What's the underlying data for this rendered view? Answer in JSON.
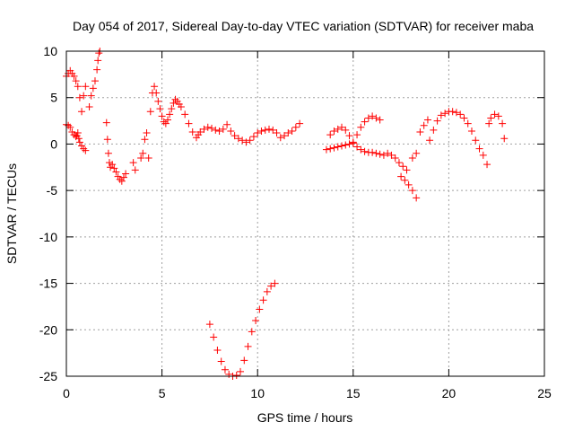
{
  "chart_data": {
    "type": "scatter",
    "title": "Day 054 of 2017, Sidereal Day-to-day VTEC variation (SDTVAR) for receiver maba",
    "xlabel": "GPS time / hours",
    "ylabel": "SDTVAR / TECUs",
    "xlim": [
      0,
      25
    ],
    "ylim": [
      -25,
      10
    ],
    "xticks": [
      0,
      5,
      10,
      15,
      20,
      25
    ],
    "xtick_labels": [
      "0",
      "5",
      "10",
      "15",
      "20",
      "25"
    ],
    "yticks": [
      -25,
      -20,
      -15,
      -10,
      -5,
      0,
      5,
      10
    ],
    "ytick_labels": [
      "-25",
      "-20",
      "-15",
      "-10",
      "-5",
      "0",
      "5",
      "10"
    ],
    "grid": true,
    "marker": "plus",
    "color": "#ff0000",
    "series": [
      {
        "x": [
          0.0,
          0.1,
          0.2,
          0.3,
          0.4,
          0.5,
          0.6,
          0.7,
          0.8,
          0.9,
          1.0,
          0.0,
          0.1,
          0.2,
          0.3,
          0.4,
          0.5,
          0.55,
          0.6,
          0.65,
          0.7,
          0.8,
          0.9,
          1.0,
          1.2,
          1.3,
          1.4,
          1.5,
          1.6,
          1.65,
          1.7,
          1.75,
          2.1,
          2.15,
          2.2,
          2.25,
          2.3,
          2.4,
          2.5,
          2.6,
          2.7,
          2.8,
          2.9,
          3.0,
          3.1,
          3.5,
          3.6,
          3.9,
          4.0,
          4.1,
          4.2,
          4.3,
          4.4,
          4.5,
          4.6,
          4.7,
          4.8,
          4.9,
          5.0,
          5.1,
          5.2,
          5.3,
          5.4,
          5.5,
          5.6,
          5.7,
          5.8,
          5.9,
          6.0,
          6.2,
          6.4,
          6.6,
          6.8,
          6.9,
          7.0,
          7.2,
          7.4,
          7.6,
          7.8,
          8.0,
          8.2,
          8.4,
          8.6,
          8.8,
          9.0,
          9.2,
          9.4,
          9.6,
          9.8,
          10.0,
          10.2,
          10.4,
          10.6,
          10.8,
          11.0,
          11.2,
          11.4,
          11.6,
          11.8,
          12.0,
          12.2,
          7.5,
          7.7,
          7.9,
          8.1,
          8.3,
          8.5,
          8.7,
          8.9,
          9.1,
          9.3,
          9.5,
          9.7,
          9.9,
          10.1,
          10.3,
          10.5,
          10.7,
          10.9,
          13.6,
          13.8,
          14.0,
          14.2,
          14.4,
          14.6,
          14.8,
          15.0,
          15.2,
          15.4,
          15.6,
          15.8,
          16.0,
          16.2,
          16.4,
          16.6,
          16.8,
          17.0,
          17.2,
          17.4,
          17.6,
          17.8,
          13.8,
          14.0,
          14.2,
          14.4,
          14.6,
          14.8,
          15.0,
          15.2,
          15.4,
          15.6,
          15.8,
          16.0,
          16.2,
          16.4,
          17.5,
          17.7,
          17.9,
          18.1,
          18.3,
          18.1,
          18.3,
          18.5,
          18.7,
          18.9,
          19.0,
          19.2,
          19.4,
          19.6,
          19.8,
          20.0,
          20.2,
          20.4,
          20.6,
          20.8,
          21.0,
          21.2,
          21.4,
          21.6,
          21.8,
          22.0,
          22.1,
          22.2,
          22.4,
          22.6,
          22.8,
          22.9
        ],
        "y": [
          7.3,
          7.6,
          7.9,
          7.6,
          7.3,
          6.8,
          6.2,
          5.0,
          3.5,
          5.2,
          6.2,
          2.1,
          2.0,
          1.8,
          1.3,
          1.0,
          0.8,
          0.9,
          1.2,
          0.6,
          0.2,
          -0.2,
          -0.5,
          -0.7,
          4.0,
          5.2,
          6.0,
          6.8,
          8.0,
          9.0,
          9.8,
          10.0,
          2.3,
          0.5,
          -1.0,
          -2.0,
          -2.5,
          -2.2,
          -2.6,
          -3.0,
          -3.5,
          -3.8,
          -4.0,
          -3.6,
          -3.2,
          -2.0,
          -2.8,
          -1.5,
          -1.0,
          0.5,
          1.2,
          -1.5,
          3.5,
          5.5,
          6.2,
          5.5,
          4.6,
          3.8,
          3.0,
          2.4,
          2.2,
          2.6,
          3.2,
          3.8,
          4.4,
          4.8,
          4.6,
          4.3,
          4.0,
          3.2,
          2.2,
          1.3,
          0.7,
          1.0,
          1.3,
          1.6,
          1.8,
          1.7,
          1.5,
          1.4,
          1.6,
          2.1,
          1.4,
          0.9,
          0.6,
          0.4,
          0.2,
          0.4,
          0.8,
          1.2,
          1.4,
          1.5,
          1.6,
          1.5,
          1.2,
          0.7,
          0.9,
          1.2,
          1.4,
          1.8,
          2.2,
          -19.4,
          -20.8,
          -22.2,
          -23.4,
          -24.3,
          -24.8,
          -25.0,
          -24.9,
          -24.5,
          -23.3,
          -21.8,
          -20.2,
          -19.0,
          -17.8,
          -16.8,
          -15.9,
          -15.3,
          -15.0,
          -0.6,
          -0.5,
          -0.4,
          -0.3,
          -0.2,
          -0.1,
          0.0,
          0.1,
          -0.3,
          -0.6,
          -0.8,
          -0.9,
          -0.9,
          -1.0,
          -1.1,
          -1.2,
          -1.0,
          -1.2,
          -1.5,
          -2.0,
          -2.4,
          -2.8,
          1.0,
          1.4,
          1.6,
          1.8,
          1.5,
          0.9,
          0.2,
          1.0,
          1.8,
          2.4,
          2.8,
          3.0,
          2.8,
          2.6,
          -3.5,
          -3.9,
          -4.4,
          -5.0,
          -5.8,
          -1.5,
          -1.0,
          1.3,
          2.0,
          2.6,
          0.4,
          1.5,
          2.5,
          3.1,
          3.3,
          3.5,
          3.5,
          3.4,
          3.2,
          2.8,
          2.2,
          1.4,
          0.4,
          -0.5,
          -1.2,
          -2.2,
          2.2,
          2.8,
          3.2,
          3.0,
          2.2,
          0.6
        ]
      }
    ]
  }
}
